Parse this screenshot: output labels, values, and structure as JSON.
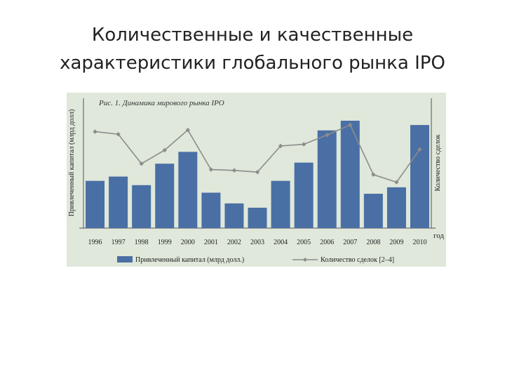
{
  "slide": {
    "title_line1": "Количественные и качественные",
    "title_line2": "характеристики глобального рынка IPO"
  },
  "colors": {
    "panel_bg": "#dfe8da",
    "bar": "#4a6fa5",
    "line": "#8c8c8c"
  },
  "chart_data": {
    "type": "bar",
    "title": "Рис. 1. Динамика мирового рынка IPO",
    "categories": [
      "1996",
      "1997",
      "1998",
      "1999",
      "2000",
      "2001",
      "2002",
      "2003",
      "2004",
      "2005",
      "2006",
      "2007",
      "2008",
      "2009",
      "2010"
    ],
    "ylabel": "Привлеченный капитал (млрд долл)",
    "y2label": "Количество сделок",
    "xlabel": "год",
    "ylim": [
      0,
      100
    ],
    "y2lim": [
      0,
      100
    ],
    "grid": false,
    "legend_position": "bottom",
    "series": [
      {
        "name": "Привлеченный капитал (млрд долл.)",
        "kind": "bar",
        "axis": "left",
        "values": [
          44,
          48,
          40,
          60,
          71,
          33,
          23,
          19,
          44,
          61,
          91,
          100,
          32,
          38,
          96
        ]
      },
      {
        "name": "Количество сделок [2–4]",
        "kind": "line",
        "axis": "right",
        "values": [
          87,
          84,
          49,
          65,
          89,
          42,
          41,
          39,
          70,
          72,
          83,
          95,
          36,
          27,
          66
        ]
      }
    ]
  }
}
